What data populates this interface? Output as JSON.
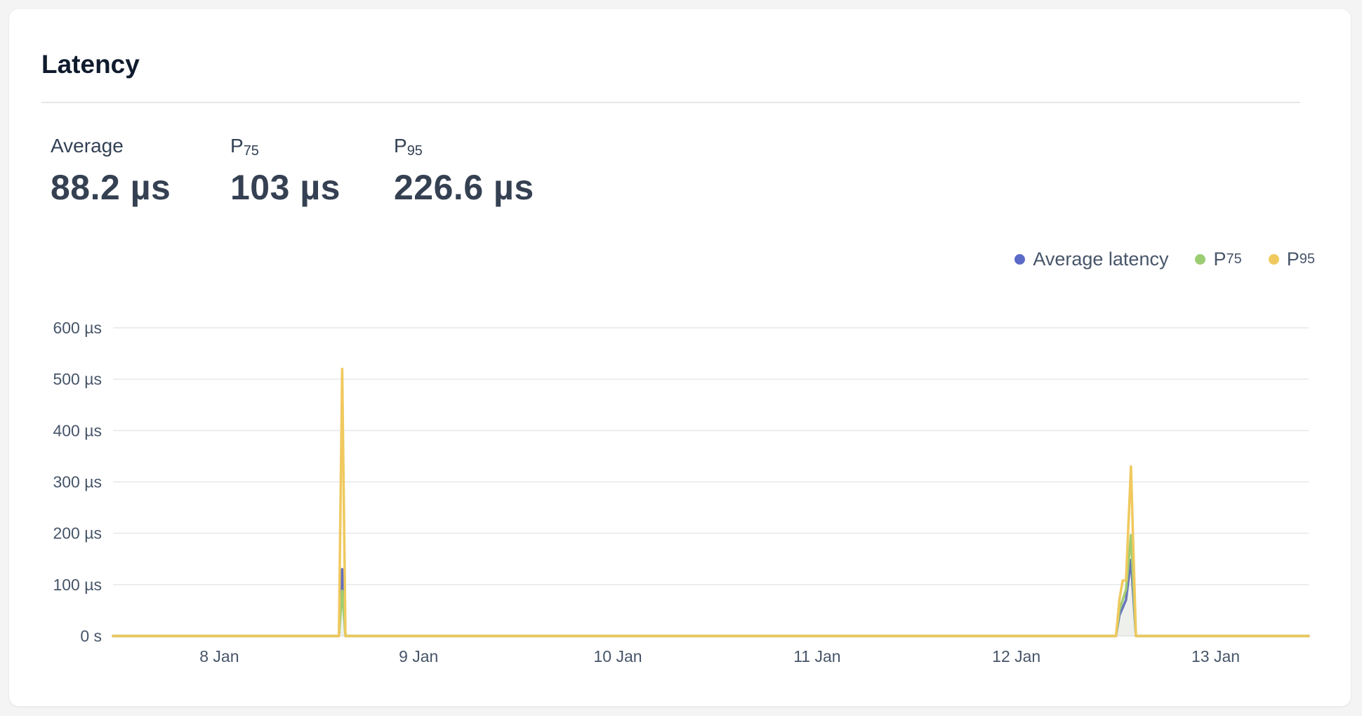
{
  "card": {
    "title": "Latency"
  },
  "stats": [
    {
      "label": "Average",
      "sub": "",
      "value": "88.2 µs"
    },
    {
      "label": "P",
      "sub": "75",
      "value": "103 µs"
    },
    {
      "label": "P",
      "sub": "95",
      "value": "226.6 µs"
    }
  ],
  "legend": [
    {
      "label": "Average latency",
      "sub": "",
      "color": "#5b6ac7"
    },
    {
      "label": "P",
      "sub": "75",
      "color": "#9ccd73"
    },
    {
      "label": "P",
      "sub": "95",
      "color": "#f0c95e"
    }
  ],
  "chart_data": {
    "type": "line",
    "title": "",
    "xlabel": "",
    "ylabel": "",
    "x_unit": "day",
    "xlim": [
      "2024-01-07T11:12",
      "2024-01-13T11:12"
    ],
    "ylim": [
      0,
      600
    ],
    "y_ticks": [
      0,
      100,
      200,
      300,
      400,
      500,
      600
    ],
    "y_tick_labels": [
      "0 s",
      "100 µs",
      "200 µs",
      "300 µs",
      "400 µs",
      "500 µs",
      "600 µs"
    ],
    "x_ticks": [
      "2024-01-08T00:00",
      "2024-01-09T00:00",
      "2024-01-10T00:00",
      "2024-01-11T00:00",
      "2024-01-12T00:00",
      "2024-01-13T00:00"
    ],
    "x_tick_labels": [
      "8 Jan",
      "9 Jan",
      "10 Jan",
      "11 Jan",
      "12 Jan",
      "13 Jan"
    ],
    "grid": true,
    "legend_position": "top-right",
    "series": [
      {
        "name": "Average latency",
        "color": "#5b6ac7",
        "points": [
          [
            "2024-01-07T11:12",
            0
          ],
          [
            "2024-01-08T14:24",
            0
          ],
          [
            "2024-01-08T14:48",
            130
          ],
          [
            "2024-01-08T15:12",
            0
          ],
          [
            "2024-01-12T12:00",
            0
          ],
          [
            "2024-01-12T12:24",
            40
          ],
          [
            "2024-01-12T13:12",
            70
          ],
          [
            "2024-01-12T13:48",
            148
          ],
          [
            "2024-01-12T14:24",
            0
          ],
          [
            "2024-01-13T11:12",
            0
          ]
        ]
      },
      {
        "name": "P75",
        "color": "#9ccd73",
        "points": [
          [
            "2024-01-07T11:12",
            0
          ],
          [
            "2024-01-08T14:24",
            0
          ],
          [
            "2024-01-08T14:48",
            88
          ],
          [
            "2024-01-08T15:12",
            0
          ],
          [
            "2024-01-12T12:00",
            0
          ],
          [
            "2024-01-12T12:24",
            50
          ],
          [
            "2024-01-12T13:12",
            90
          ],
          [
            "2024-01-12T13:48",
            196
          ],
          [
            "2024-01-12T14:24",
            0
          ],
          [
            "2024-01-13T11:12",
            0
          ]
        ]
      },
      {
        "name": "P95",
        "color": "#f0c95e",
        "points": [
          [
            "2024-01-07T11:12",
            0
          ],
          [
            "2024-01-08T14:24",
            0
          ],
          [
            "2024-01-08T14:48",
            520
          ],
          [
            "2024-01-08T15:12",
            0
          ],
          [
            "2024-01-12T12:00",
            0
          ],
          [
            "2024-01-12T12:24",
            70
          ],
          [
            "2024-01-12T12:48",
            108
          ],
          [
            "2024-01-12T13:12",
            108
          ],
          [
            "2024-01-12T13:48",
            330
          ],
          [
            "2024-01-12T14:24",
            0
          ],
          [
            "2024-01-13T11:12",
            0
          ]
        ]
      }
    ]
  }
}
